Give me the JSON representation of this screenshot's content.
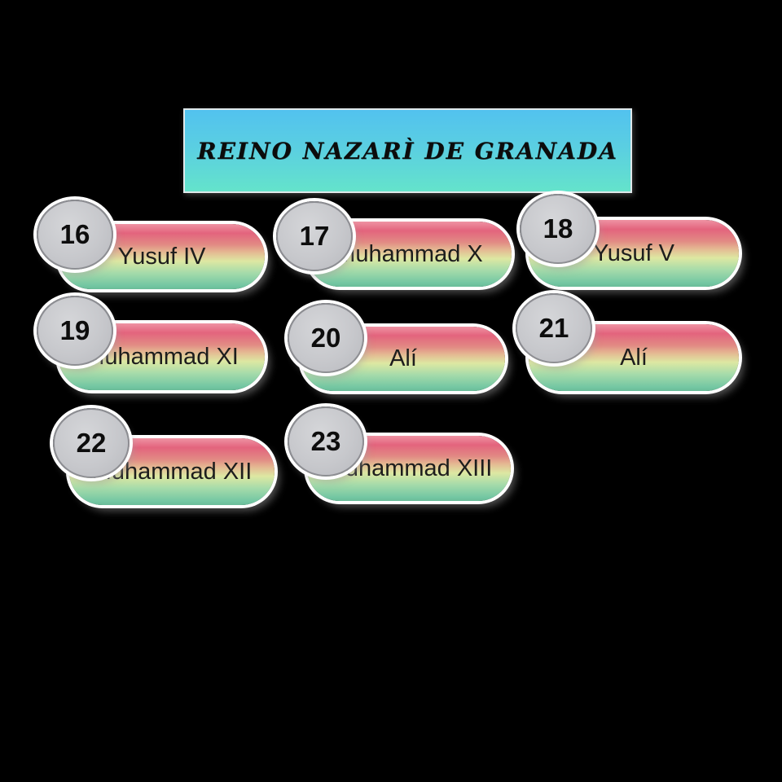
{
  "title": {
    "text": "REINO NAZARÌ DE GRANADA"
  },
  "nodes": [
    {
      "number": "16",
      "name": "Yusuf IV"
    },
    {
      "number": "17",
      "name": "Muhammad X"
    },
    {
      "number": "18",
      "name": "Yusuf V"
    },
    {
      "number": "19",
      "name": "Muhammad XI"
    },
    {
      "number": "20",
      "name": "Alí"
    },
    {
      "number": "21",
      "name": "Alí"
    },
    {
      "number": "22",
      "name": "Muhammad XII"
    },
    {
      "number": "23",
      "name": "Muhammad XIII"
    }
  ],
  "colors": {
    "background": "#000000",
    "title_gradient_top": "#52c2ef",
    "title_gradient_bottom": "#64e3cb",
    "pill_gradient_top": "#e3647d",
    "pill_gradient_middle": "#dde8a2",
    "pill_gradient_bottom": "#6abc99",
    "badge_fill": "#c7c8cc",
    "badge_border": "#8d8e93",
    "outline": "#ffffff",
    "text": "#1d1d1d"
  }
}
